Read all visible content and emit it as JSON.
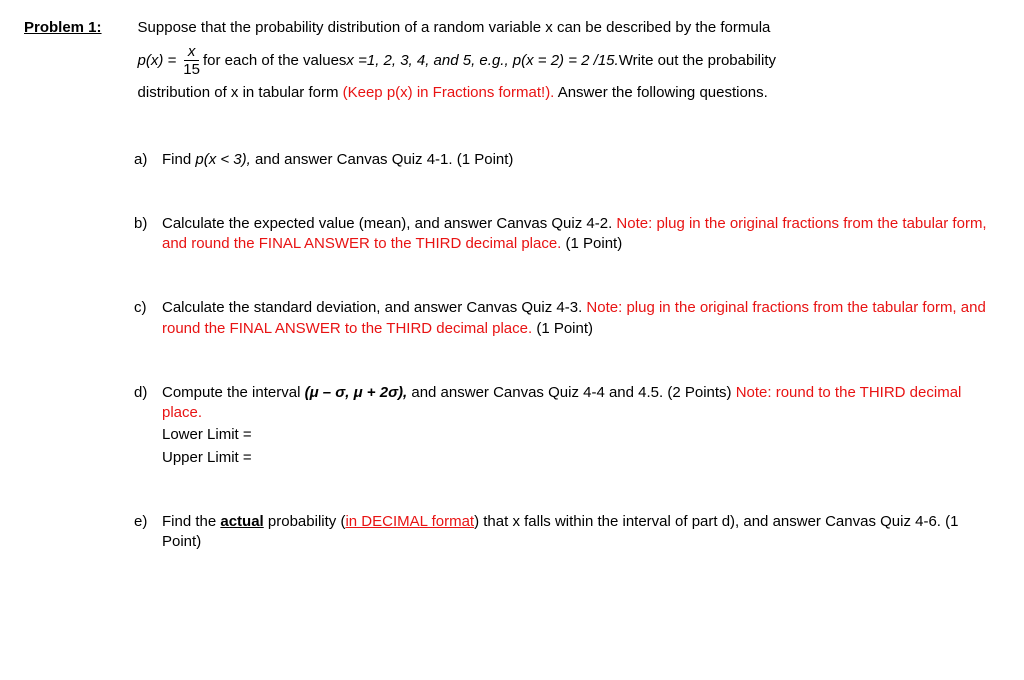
{
  "problem": {
    "label": "Problem 1:",
    "intro": "Suppose that the probability distribution of a random variable x can be described by the formula",
    "formula_px": "p(x) =",
    "formula_num": "x",
    "formula_den": "15",
    "formula_tail_1": " for each of the values ",
    "formula_italic": "x =1, 2, 3, 4, and 5, e.g., p(x = 2) = 2 /15.",
    "formula_tail_2": " Write out the probability",
    "intro2_a": "distribution of x in tabular form ",
    "intro2_red": "(Keep p(x) in Fractions format!).",
    "intro2_b": " Answer the following questions."
  },
  "qa": {
    "letter": "a)",
    "pre": "Find ",
    "italic": "p(x < 3),",
    "post": " and answer Canvas Quiz 4-1. (1 Point)"
  },
  "qb": {
    "letter": "b)",
    "line1": "Calculate the expected value (mean), and answer Canvas Quiz 4-2. ",
    "red": "Note: plug in the original fractions from the tabular form, and round the FINAL ANSWER to the THIRD decimal place.",
    "tail": " (1 Point)"
  },
  "qc": {
    "letter": "c)",
    "line1": "Calculate the standard deviation, and answer Canvas Quiz 4-3. ",
    "red": "Note: plug in the original fractions from the tabular form, and round the FINAL ANSWER to the THIRD decimal place.",
    "tail": " (1 Point)"
  },
  "qd": {
    "letter": "d)",
    "pre": "Compute the interval ",
    "italic": "(μ – σ, μ + 2σ),",
    "mid": " and answer Canvas Quiz 4-4 and 4.5. (2 Points) ",
    "red": "Note: round to the THIRD decimal place.",
    "lower": "Lower Limit =",
    "upper": "Upper Limit ="
  },
  "qe": {
    "letter": "e)",
    "pre": "Find the ",
    "actual": "actual",
    "mid1": " probability (",
    "red": "in DECIMAL format",
    "mid2": ") that x falls within the interval of part d), and answer Canvas Quiz 4-6. (1 Point)"
  }
}
